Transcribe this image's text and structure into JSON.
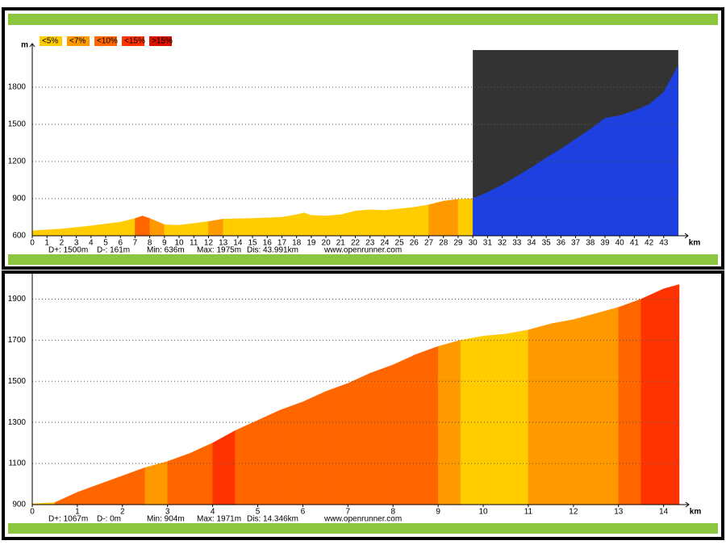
{
  "chart_data": [
    {
      "type": "elevation",
      "y_label": "m",
      "x_label": "km",
      "legend": [
        {
          "name": "<5%",
          "color": "#ffcc00"
        },
        {
          "name": "<7%",
          "color": "#ff9900"
        },
        {
          "name": "<10%",
          "color": "#ff6600"
        },
        {
          "name": "<15%",
          "color": "#ff3300"
        },
        {
          "name": ">15%",
          "color": "#dd1100"
        }
      ],
      "x": [
        0,
        2,
        4,
        6,
        7,
        7.5,
        8,
        9,
        10,
        12,
        13,
        15,
        17,
        18,
        18.5,
        19,
        20,
        21,
        22,
        23,
        24,
        26,
        27,
        28,
        29,
        30,
        31,
        32,
        33,
        34,
        35,
        36,
        37,
        38,
        39,
        40,
        41,
        42,
        43,
        43.991
      ],
      "values": [
        640,
        655,
        680,
        710,
        740,
        760,
        740,
        690,
        685,
        715,
        735,
        740,
        750,
        770,
        785,
        765,
        760,
        770,
        800,
        810,
        805,
        830,
        850,
        880,
        895,
        900,
        950,
        1010,
        1080,
        1150,
        1230,
        1300,
        1380,
        1460,
        1550,
        1570,
        1610,
        1660,
        1760,
        1975
      ],
      "grades": [
        0,
        0,
        0,
        0,
        2,
        2,
        1,
        0,
        0,
        1,
        0,
        0,
        0,
        0,
        0,
        0,
        0,
        0,
        0,
        0,
        0,
        0,
        1,
        1,
        0,
        0,
        0,
        0,
        0,
        0,
        0,
        0,
        0,
        0,
        0,
        0,
        0,
        0,
        0
      ],
      "highlight": {
        "from": 30,
        "to": 43.991,
        "color": "#1e40e0",
        "background": "#333333"
      },
      "xlim": [
        0,
        44
      ],
      "ylim": [
        600,
        2100
      ],
      "xticks": [
        0,
        1,
        2,
        3,
        4,
        5,
        6,
        7,
        8,
        9,
        10,
        11,
        12,
        13,
        14,
        15,
        16,
        17,
        18,
        19,
        20,
        21,
        22,
        23,
        24,
        25,
        26,
        27,
        28,
        29,
        30,
        31,
        32,
        33,
        34,
        35,
        36,
        37,
        38,
        39,
        40,
        41,
        42,
        43
      ],
      "yticks": [
        600,
        900,
        1200,
        1500,
        1800
      ],
      "grid": true,
      "stats": [
        "D+: 1500m",
        "D-: 161m",
        "Min: 636m",
        "Max: 1975m",
        "Dis: 43.991km"
      ],
      "site": "www.openrunner.com"
    },
    {
      "type": "elevation",
      "x_label": "km",
      "x": [
        0,
        0.5,
        1,
        1.5,
        2,
        2.5,
        3,
        3.5,
        4,
        4.5,
        5,
        5.5,
        6,
        6.5,
        7,
        7.5,
        8,
        8.5,
        9,
        9.5,
        10,
        10.5,
        11,
        11.5,
        12,
        12.5,
        13,
        13.5,
        14,
        14.346
      ],
      "values": [
        904,
        910,
        960,
        1000,
        1040,
        1080,
        1110,
        1150,
        1200,
        1260,
        1310,
        1360,
        1400,
        1450,
        1490,
        1540,
        1580,
        1630,
        1670,
        1700,
        1720,
        1730,
        1750,
        1780,
        1800,
        1830,
        1860,
        1900,
        1950,
        1971
      ],
      "grades": [
        0,
        2,
        2,
        2,
        2,
        1,
        2,
        2,
        3,
        2,
        2,
        2,
        2,
        2,
        2,
        2,
        2,
        2,
        1,
        0,
        0,
        0,
        1,
        1,
        1,
        1,
        2,
        3,
        3
      ],
      "xlim": [
        0,
        14.346
      ],
      "ylim": [
        900,
        2000
      ],
      "xticks": [
        0,
        1,
        2,
        3,
        4,
        5,
        6,
        7,
        8,
        9,
        10,
        11,
        12,
        13,
        14
      ],
      "yticks": [
        900,
        1100,
        1300,
        1500,
        1700,
        1900
      ],
      "grid": true,
      "stats": [
        "D+: 1067m",
        "D-: 0m",
        "Min: 904m",
        "Max: 1971m",
        "Dis: 14.346km"
      ],
      "site": "www.openrunner.com"
    }
  ]
}
